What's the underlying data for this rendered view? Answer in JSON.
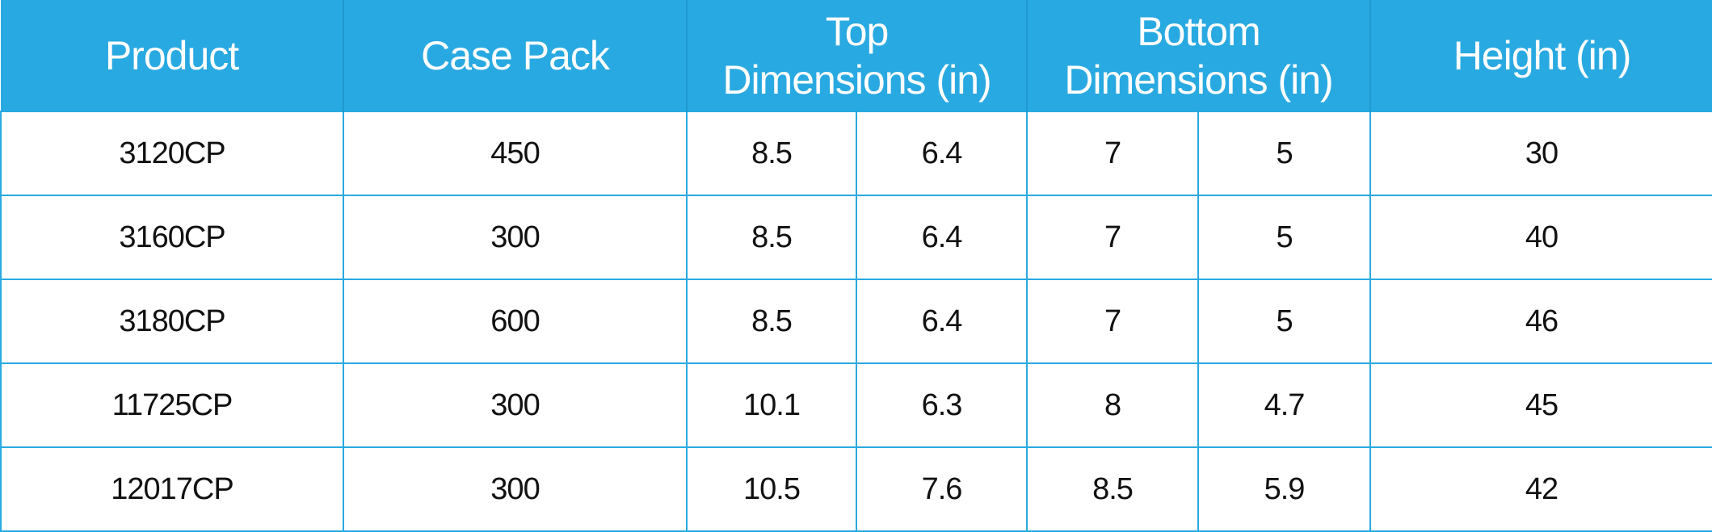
{
  "table": {
    "header": [
      "Product",
      "Case Pack",
      "Top\nDimensions (in)",
      "Bottom\nDimensions (in)",
      "Height (in)"
    ],
    "rows": [
      [
        "3120CP",
        "450",
        "8.5",
        "6.4",
        "7",
        "5",
        "30"
      ],
      [
        "3160CP",
        "300",
        "8.5",
        "6.4",
        "7",
        "5",
        "40"
      ],
      [
        "3180CP",
        "600",
        "8.5",
        "6.4",
        "7",
        "5",
        "46"
      ],
      [
        "11725CP",
        "300",
        "10.1",
        "6.3",
        "8",
        "4.7",
        "45"
      ],
      [
        "12017CP",
        "300",
        "10.5",
        "7.6",
        "8.5",
        "5.9",
        "42"
      ]
    ]
  }
}
